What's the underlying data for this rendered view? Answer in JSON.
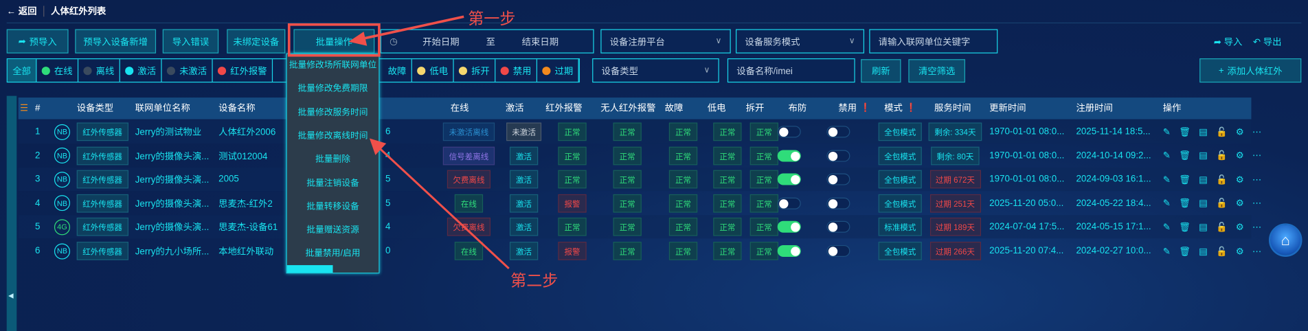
{
  "header": {
    "back_label": "返回",
    "title": "人体红外列表"
  },
  "toolbar": {
    "buttons": [
      "预导入",
      "预导入设备新增",
      "导入错误",
      "未绑定设备",
      "批量操作"
    ],
    "date_start": "开始日期",
    "date_to": "至",
    "date_end": "结束日期",
    "platform_select": "设备注册平台",
    "service_mode_select": "设备服务模式",
    "keyword_placeholder": "请输入联网单位关键字",
    "import_label": "导入",
    "export_label": "导出"
  },
  "filters": [
    {
      "label": "全部",
      "color": null
    },
    {
      "label": "在线",
      "color": "#2fdc7a"
    },
    {
      "label": "离线",
      "color": "#3a4a5e"
    },
    {
      "label": "激活",
      "color": "#19e3ef"
    },
    {
      "label": "未激活",
      "color": "#3a4a5e"
    },
    {
      "label": "红外报警",
      "color": "#f04848"
    },
    {
      "label": "故障",
      "color": null
    },
    {
      "label": "低电",
      "color": "#f5d76e"
    },
    {
      "label": "拆开",
      "color": "#f5d76e"
    },
    {
      "label": "禁用",
      "color": "#f04848"
    },
    {
      "label": "过期",
      "color": "#f28a1e"
    }
  ],
  "filter_bar": {
    "device_type_select": "设备类型",
    "name_placeholder": "设备名称/imei",
    "refresh": "刷新",
    "clear": "清空筛选",
    "add": "添加人体红外"
  },
  "dropdown": {
    "items": [
      "批量修改场所联网单位",
      "批量修改免费期限",
      "批量修改服务时间",
      "批量修改离线时间",
      "批量删除",
      "批量注销设备",
      "批量转移设备",
      "批量赠送资源",
      "批量禁用/启用"
    ]
  },
  "annotations": {
    "step1": "第一步",
    "step2": "第二步"
  },
  "table": {
    "headers": [
      "#",
      "设备类型",
      "联网单位名称",
      "设备名称",
      "在线",
      "激活",
      "红外报警",
      "无人红外报警",
      "故障",
      "低电",
      "拆开",
      "布防",
      "禁用",
      "模式",
      "服务时间",
      "更新时间",
      "注册时间",
      "操作"
    ],
    "rows": [
      {
        "no": "1",
        "net": "NB",
        "type": "红外传感器",
        "unit": "Jerry的测试物业",
        "name": "人体红外2006",
        "hidden": "6",
        "online": "未激活离线",
        "online_style": "muted",
        "active": "未激活",
        "active_style": "gray",
        "ir": "正常",
        "ir_style": "ok",
        "unmanned": "正常",
        "fault": "正常",
        "lowbat": "正常",
        "tamper": "正常",
        "armed": false,
        "disabled": false,
        "mode": "全包模式",
        "service": "剩余: 334天",
        "service_style": "",
        "updated": "1970-01-01 08:0...",
        "registered": "2025-11-14 18:5..."
      },
      {
        "no": "2",
        "net": "NB",
        "type": "红外传感器",
        "unit": "Jerry的摄像头演...",
        "name": "测试012004",
        "hidden": "4",
        "online": "信号差离线",
        "online_style": "purple",
        "active": "激活",
        "active_style": "",
        "ir": "正常",
        "ir_style": "ok",
        "unmanned": "正常",
        "fault": "正常",
        "lowbat": "正常",
        "tamper": "正常",
        "armed": true,
        "disabled": false,
        "mode": "全包模式",
        "service": "剩余: 80天",
        "service_style": "",
        "updated": "1970-01-01 08:0...",
        "registered": "2024-10-14 09:2..."
      },
      {
        "no": "3",
        "net": "NB",
        "type": "红外传感器",
        "unit": "Jerry的摄像头演...",
        "name": "2005",
        "hidden": "5",
        "online": "欠费离线",
        "online_style": "red",
        "active": "激活",
        "active_style": "",
        "ir": "正常",
        "ir_style": "ok",
        "unmanned": "正常",
        "fault": "正常",
        "lowbat": "正常",
        "tamper": "正常",
        "armed": true,
        "disabled": false,
        "mode": "全包模式",
        "service": "过期 672天",
        "service_style": "red",
        "updated": "1970-01-01 08:0...",
        "registered": "2024-09-03 16:1..."
      },
      {
        "no": "4",
        "net": "NB",
        "type": "红外传感器",
        "unit": "Jerry的摄像头演...",
        "name": "思麦杰-红外2",
        "hidden": "5",
        "online": "在线",
        "online_style": "ok",
        "active": "激活",
        "active_style": "",
        "ir": "报警",
        "ir_style": "red",
        "unmanned": "正常",
        "fault": "正常",
        "lowbat": "正常",
        "tamper": "正常",
        "armed": false,
        "disabled": false,
        "mode": "全包模式",
        "service": "过期 251天",
        "service_style": "red",
        "updated": "2025-11-20 05:0...",
        "registered": "2024-05-22 18:4..."
      },
      {
        "no": "5",
        "net": "4G",
        "type": "红外传感器",
        "unit": "Jerry的摄像头演...",
        "name": "思麦杰-设备61",
        "hidden": "4",
        "online": "欠费离线",
        "online_style": "red",
        "active": "激活",
        "active_style": "",
        "ir": "正常",
        "ir_style": "ok",
        "unmanned": "正常",
        "fault": "正常",
        "lowbat": "正常",
        "tamper": "正常",
        "armed": true,
        "disabled": false,
        "mode": "标准模式",
        "service": "过期 189天",
        "service_style": "red",
        "updated": "2024-07-04 17:5...",
        "registered": "2024-05-15 17:1..."
      },
      {
        "no": "6",
        "net": "NB",
        "type": "红外传感器",
        "unit": "Jerry的九小场所...",
        "name": "本地红外联动",
        "hidden": "0",
        "online": "在线",
        "online_style": "ok",
        "active": "激活",
        "active_style": "",
        "ir": "报警",
        "ir_style": "red",
        "unmanned": "正常",
        "fault": "正常",
        "lowbat": "正常",
        "tamper": "正常",
        "armed": true,
        "disabled": false,
        "mode": "全包模式",
        "service": "过期 266天",
        "service_style": "red",
        "updated": "2025-11-20 07:4...",
        "registered": "2024-02-27 10:0..."
      }
    ]
  },
  "colors": {
    "accent": "#19e3ef",
    "annotation": "#f0504a",
    "background": "#0a2050"
  }
}
